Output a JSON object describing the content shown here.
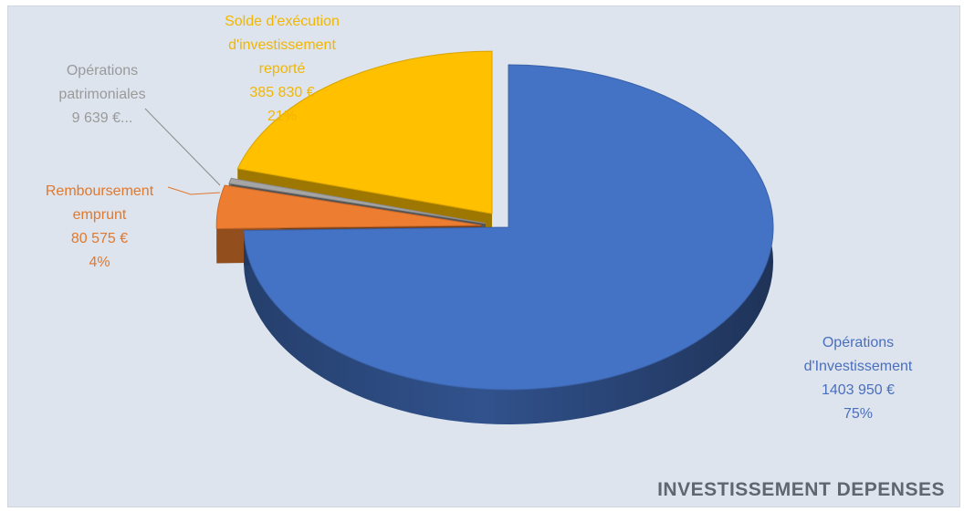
{
  "colors": {
    "background": "#dde4ee",
    "title": "#5f6670"
  },
  "chart_data": {
    "type": "pie",
    "title": "INVESTISSEMENT DEPENSES",
    "slices": [
      {
        "label": "Opérations d'Investissement",
        "label_lines": [
          "Opérations",
          "d'Investissement"
        ],
        "value_text": "1403 950 €",
        "percent_text": "75%",
        "value": 1403950,
        "percent": 75,
        "color": "#4472c4",
        "label_color": "#4a6fbd"
      },
      {
        "label": "Remboursement emprunt",
        "label_lines": [
          "Remboursement",
          "emprunt"
        ],
        "value_text": "80 575 €",
        "percent_text": "4%",
        "value": 80575,
        "percent": 4,
        "color": "#ed7d31",
        "label_color": "#e0782d"
      },
      {
        "label": "Opérations patrimoniales",
        "label_lines": [
          "Opérations",
          "patrimoniales"
        ],
        "value_text": "9 639 €...",
        "percent_text": "",
        "value": 9639,
        "percent": 1,
        "color": "#a5a5a5",
        "label_color": "#9a9a9a"
      },
      {
        "label": "Solde d'exécution d'investissement reporté",
        "label_lines": [
          "Solde d'exécution",
          "d'investissement",
          "reporté"
        ],
        "value_text": "385 830 €",
        "percent_text": "21%",
        "value": 385830,
        "percent": 21,
        "color": "#ffc000",
        "label_color": "#f2b600"
      }
    ]
  }
}
